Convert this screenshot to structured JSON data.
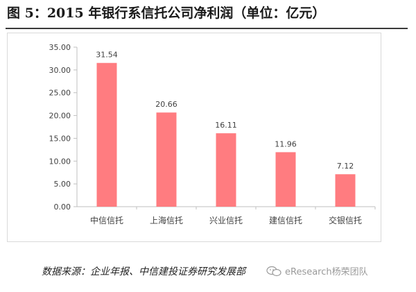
{
  "title": "图 5：2015 年银行系信托公司净利润（单位：亿元）",
  "source": "数据来源：企业年报、中信建投证券研究发展部",
  "watermark": "eResearch杨荣团队",
  "colors": {
    "bar": "#ff7c80",
    "axis": "#bfbfbf",
    "text": "#404040"
  },
  "chart_data": {
    "type": "bar",
    "categories": [
      "中信信托",
      "上海信托",
      "兴业信托",
      "建信信托",
      "交银信托"
    ],
    "values": [
      31.54,
      20.66,
      16.11,
      11.96,
      7.12
    ],
    "data_labels": [
      "31.54",
      "20.66",
      "16.11",
      "11.96",
      "7.12"
    ],
    "yticks": [
      "0.00",
      "5.00",
      "10.00",
      "15.00",
      "20.00",
      "25.00",
      "30.00",
      "35.00"
    ],
    "ylim": [
      0,
      35
    ],
    "grid": false,
    "legend": "none"
  }
}
